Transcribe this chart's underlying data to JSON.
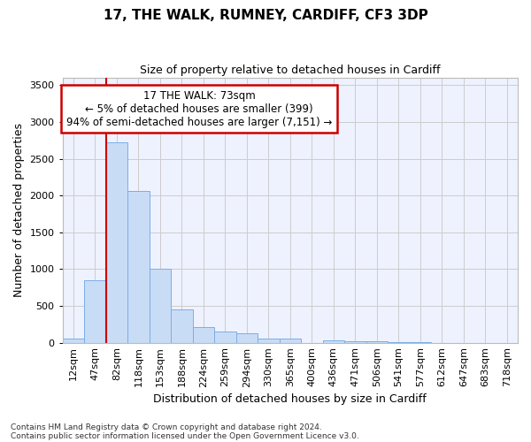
{
  "title": "17, THE WALK, RUMNEY, CARDIFF, CF3 3DP",
  "subtitle": "Size of property relative to detached houses in Cardiff",
  "xlabel": "Distribution of detached houses by size in Cardiff",
  "ylabel": "Number of detached properties",
  "categories": [
    "12sqm",
    "47sqm",
    "82sqm",
    "118sqm",
    "153sqm",
    "188sqm",
    "224sqm",
    "259sqm",
    "294sqm",
    "330sqm",
    "365sqm",
    "400sqm",
    "436sqm",
    "471sqm",
    "506sqm",
    "541sqm",
    "577sqm",
    "612sqm",
    "647sqm",
    "683sqm",
    "718sqm"
  ],
  "values": [
    60,
    850,
    2720,
    2060,
    1010,
    455,
    210,
    150,
    130,
    60,
    55,
    0,
    30,
    20,
    20,
    5,
    5,
    0,
    0,
    0,
    0
  ],
  "bar_color": "#c9dcf5",
  "bar_edge_color": "#7aaee8",
  "grid_color": "#cccccc",
  "background_color": "#eef2ff",
  "annotation_text_line1": "17 THE WALK: 73sqm",
  "annotation_text_line2": "← 5% of detached houses are smaller (399)",
  "annotation_text_line3": "94% of semi-detached houses are larger (7,151) →",
  "annotation_box_facecolor": "#ffffff",
  "annotation_box_edgecolor": "#cc0000",
  "red_line_color": "#cc0000",
  "footer_line1": "Contains HM Land Registry data © Crown copyright and database right 2024.",
  "footer_line2": "Contains public sector information licensed under the Open Government Licence v3.0.",
  "ylim": [
    0,
    3600
  ],
  "yticks": [
    0,
    500,
    1000,
    1500,
    2000,
    2500,
    3000,
    3500
  ],
  "title_fontsize": 11,
  "subtitle_fontsize": 9,
  "tick_fontsize": 8,
  "ylabel_fontsize": 9,
  "xlabel_fontsize": 9,
  "footer_fontsize": 6.5
}
